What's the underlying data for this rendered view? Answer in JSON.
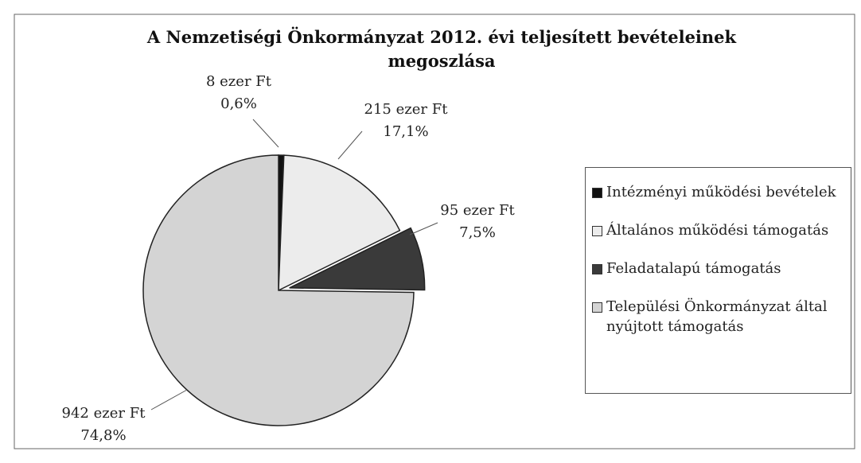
{
  "chart_data": {
    "type": "pie",
    "title": "A Nemzetiségi Önkormányzat 2012. évi teljesített bevételeinek megoszlása",
    "categories": [
      "Intézményi működési bevételek",
      "Általános működési támogatás",
      "Feladatalapú támogatás",
      "Települési Önkormányzat által nyújtott támogatás"
    ],
    "values": [
      8,
      215,
      95,
      942
    ],
    "value_labels": [
      "8 ezer Ft",
      "215 ezer Ft",
      "95 ezer Ft",
      "942 ezer Ft"
    ],
    "percents": [
      0.6,
      17.1,
      7.5,
      74.8
    ],
    "percent_labels": [
      "0,6%",
      "17,1%",
      "7,5%",
      "74,8%"
    ],
    "colors": [
      "#111111",
      "#ececec",
      "#3a3a3a",
      "#d4d4d4"
    ],
    "legend": "right"
  }
}
